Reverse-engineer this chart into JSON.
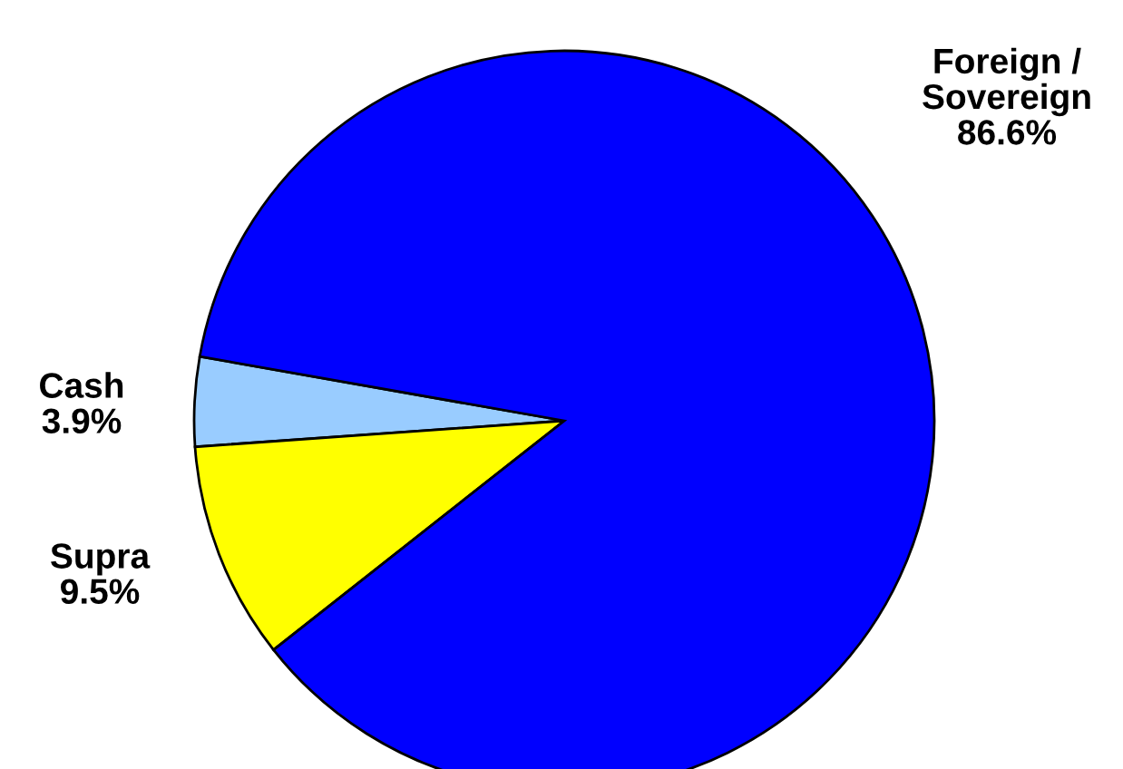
{
  "chart_data": {
    "type": "pie",
    "categories": [
      "Cash",
      "Supra",
      "Foreign / Sovereign"
    ],
    "values": [
      3.9,
      9.5,
      86.6
    ],
    "colors": [
      "#99ccff",
      "#ffff00",
      "#0000ff"
    ],
    "value_labels": [
      "3.9%",
      "9.5%",
      "86.6%"
    ]
  }
}
